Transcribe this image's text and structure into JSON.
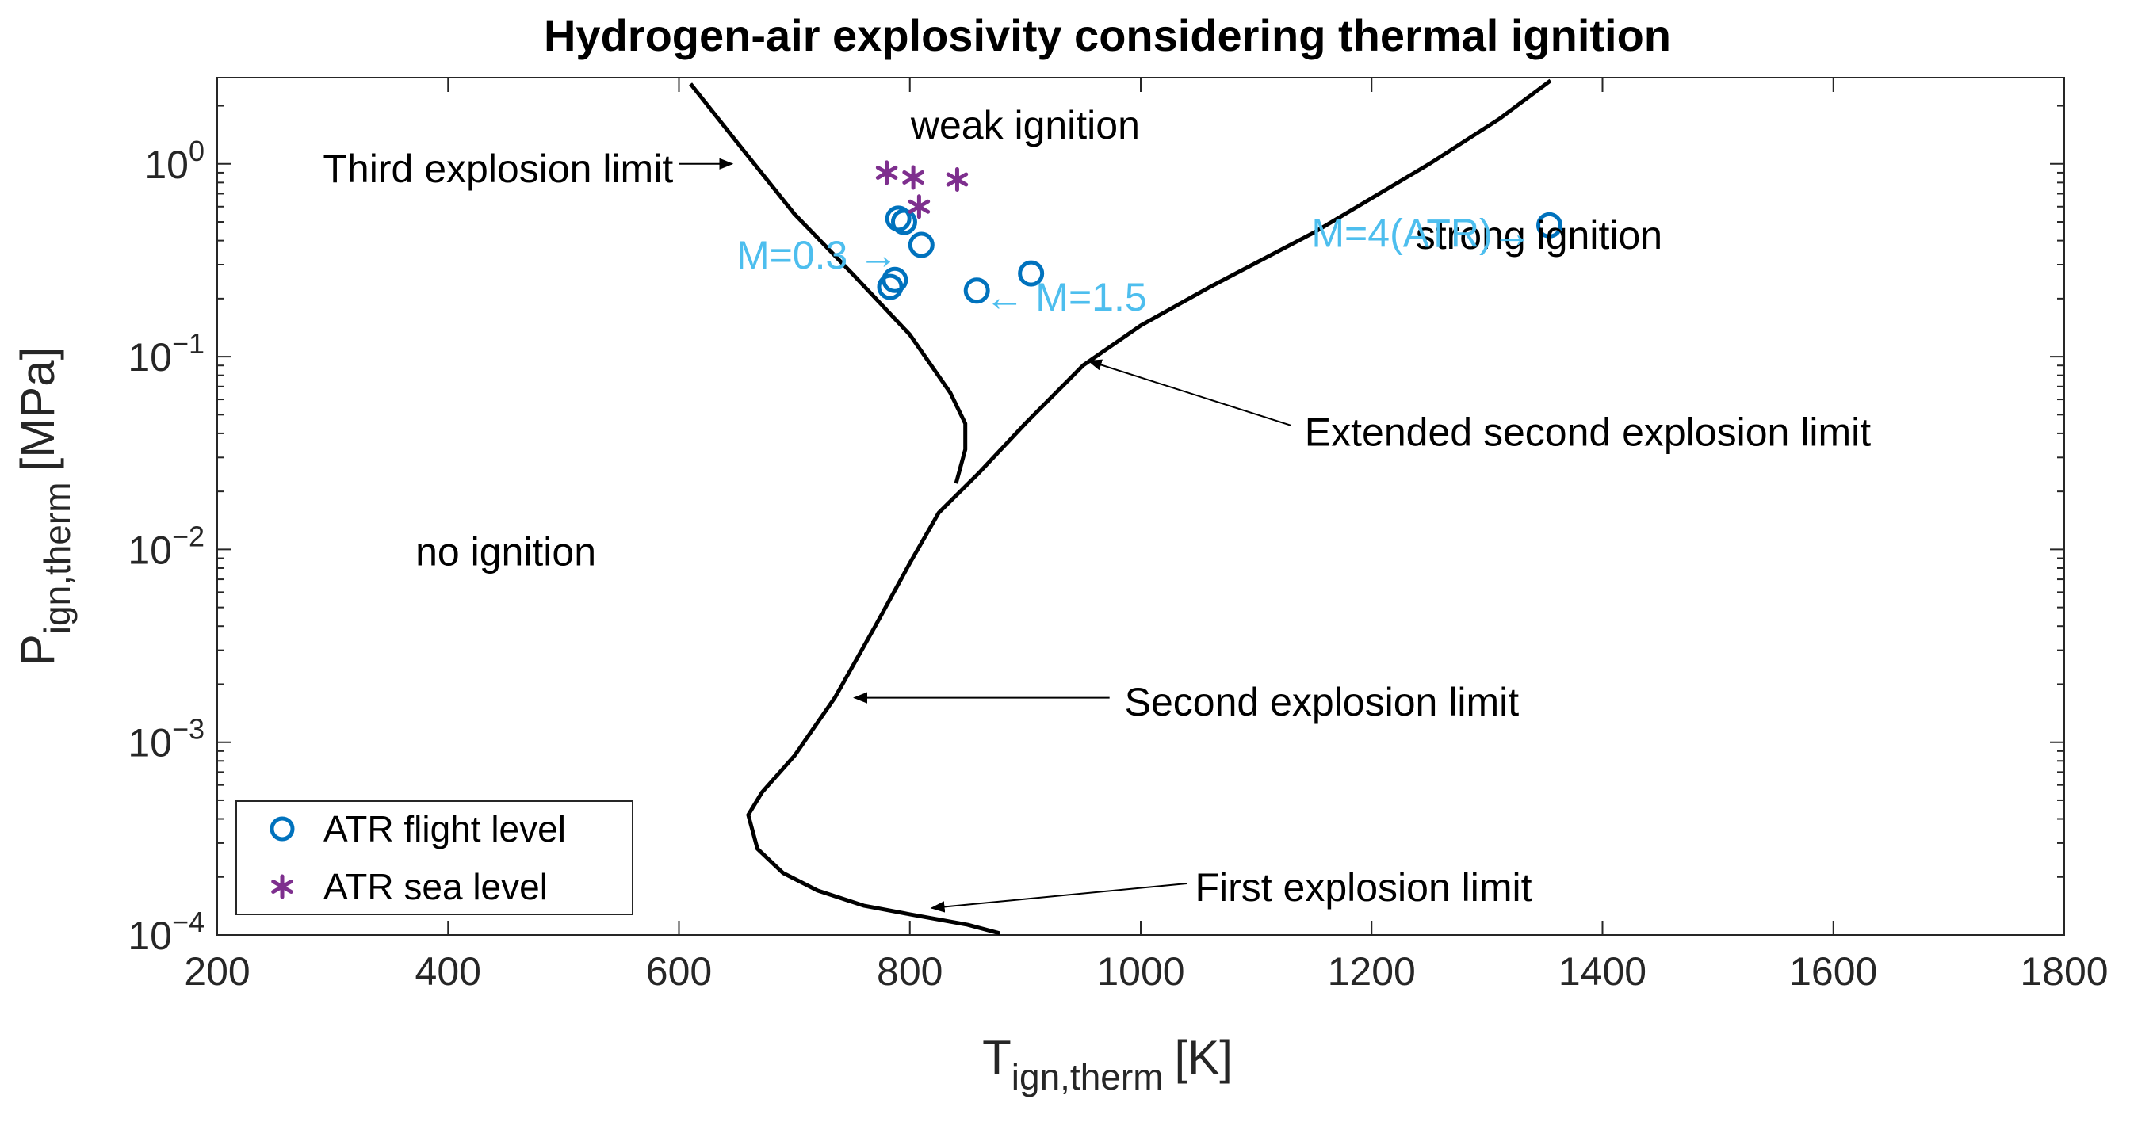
{
  "chart_data": {
    "type": "line",
    "title": "Hydrogen-air explosivity considering thermal ignition",
    "xlabel": {
      "main": "T",
      "sub": "ign,therm",
      "unit": "[K]"
    },
    "ylabel": {
      "main": "P",
      "sub": "ign,therm",
      "unit": "[MPa]"
    },
    "xlim": [
      200,
      1800
    ],
    "ylim": [
      0.0001,
      2.8
    ],
    "yscale": "log",
    "grid": false,
    "legend_position": "bottom-left",
    "x_ticks": [
      {
        "value": 200,
        "label": "200"
      },
      {
        "value": 400,
        "label": "400"
      },
      {
        "value": 600,
        "label": "600"
      },
      {
        "value": 800,
        "label": "800"
      },
      {
        "value": 1000,
        "label": "1000"
      },
      {
        "value": 1200,
        "label": "1200"
      },
      {
        "value": 1400,
        "label": "1400"
      },
      {
        "value": 1600,
        "label": "1600"
      },
      {
        "value": 1800,
        "label": "1800"
      }
    ],
    "y_ticks": [
      {
        "value": 1,
        "base": "10",
        "exp": "0"
      },
      {
        "value": 0.1,
        "base": "10",
        "exp": "−1"
      },
      {
        "value": 0.01,
        "base": "10",
        "exp": "−2"
      },
      {
        "value": 0.001,
        "base": "10",
        "exp": "−3"
      },
      {
        "value": 0.0001,
        "base": "10",
        "exp": "−4"
      }
    ],
    "curves": [
      {
        "id": "third-explosion-limit-curve",
        "points": [
          [
            610,
            2.6
          ],
          [
            650,
            1.3
          ],
          [
            700,
            0.55
          ],
          [
            750,
            0.27
          ],
          [
            800,
            0.13
          ],
          [
            835,
            0.065
          ],
          [
            848,
            0.045
          ],
          [
            848,
            0.033
          ],
          [
            840,
            0.022
          ]
        ]
      },
      {
        "id": "second-explosion-limit-curve",
        "points": [
          [
            878,
            0.000102
          ],
          [
            850,
            0.000113
          ],
          [
            800,
            0.000128
          ],
          [
            760,
            0.000142
          ],
          [
            720,
            0.00017
          ],
          [
            690,
            0.00021
          ],
          [
            668,
            0.00028
          ],
          [
            660,
            0.00042
          ],
          [
            672,
            0.00055
          ],
          [
            700,
            0.00085
          ],
          [
            735,
            0.0017
          ],
          [
            770,
            0.004
          ],
          [
            800,
            0.0085
          ],
          [
            825,
            0.0155
          ],
          [
            860,
            0.025
          ],
          [
            900,
            0.045
          ],
          [
            950,
            0.09
          ],
          [
            1000,
            0.145
          ],
          [
            1060,
            0.23
          ],
          [
            1150,
            0.44
          ],
          [
            1250,
            1.0
          ],
          [
            1310,
            1.7
          ],
          [
            1355,
            2.7
          ]
        ]
      }
    ],
    "series": [
      {
        "name": "ATR flight level",
        "marker": "circle",
        "color": "#0072BD",
        "points": [
          [
            790,
            0.52
          ],
          [
            795,
            0.5
          ],
          [
            810,
            0.38
          ],
          [
            783,
            0.23
          ],
          [
            787,
            0.25
          ],
          [
            858,
            0.22
          ],
          [
            905,
            0.27
          ],
          [
            1354,
            0.48
          ]
        ]
      },
      {
        "name": "ATR sea level",
        "marker": "asterisk",
        "color": "#7E2F8E",
        "points": [
          [
            780,
            0.9
          ],
          [
            803,
            0.85
          ],
          [
            841,
            0.83
          ],
          [
            808,
            0.6
          ]
        ]
      }
    ],
    "region_labels": [
      {
        "text": "weak ignition",
        "x": 900,
        "y": 1.6
      },
      {
        "text": "strong ignition",
        "x": 1345,
        "y": 0.43
      },
      {
        "text": "no ignition",
        "x": 450,
        "y": 0.0098
      }
    ],
    "annotations": [
      {
        "text": "Third explosion limit",
        "color": "#000000",
        "arrow_from": [
          600,
          1.0
        ],
        "arrow_to": [
          646,
          1.0
        ],
        "text_anchor": "end",
        "text_at": [
          595,
          0.95
        ]
      },
      {
        "text": "Extended second explosion limit",
        "color": "#000000",
        "arrow_from": [
          1130,
          0.044
        ],
        "arrow_to": [
          955,
          0.095
        ],
        "text_anchor": "start",
        "text_at": [
          1142,
          0.041
        ]
      },
      {
        "text": "Second explosion limit",
        "color": "#000000",
        "arrow_from": [
          973,
          0.0017
        ],
        "arrow_to": [
          752,
          0.0017
        ],
        "text_anchor": "start",
        "text_at": [
          986,
          0.00163
        ]
      },
      {
        "text": "First explosion limit",
        "color": "#000000",
        "arrow_from": [
          1040,
          0.000185
        ],
        "arrow_to": [
          819,
          0.000138
        ],
        "text_anchor": "start",
        "text_at": [
          1047,
          0.000178
        ]
      },
      {
        "text": "M=0.3 →",
        "color": "#4DBEEE",
        "arrow_from": null,
        "arrow_to": null,
        "text_anchor": "end",
        "text_at": [
          790,
          0.34
        ]
      },
      {
        "text": "← M=1.5",
        "color": "#4DBEEE",
        "arrow_from": null,
        "arrow_to": null,
        "text_anchor": "start",
        "text_at": [
          865,
          0.205
        ]
      },
      {
        "text": "M=4(ATR)→",
        "color": "#4DBEEE",
        "arrow_from": null,
        "arrow_to": null,
        "text_anchor": "end",
        "text_at": [
          1339,
          0.44
        ]
      }
    ]
  }
}
